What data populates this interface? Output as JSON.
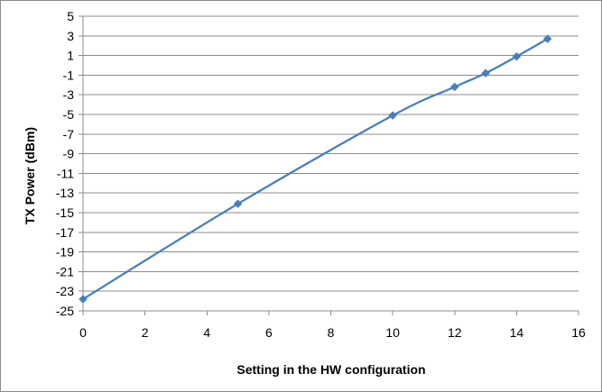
{
  "chart_data": {
    "type": "scatter",
    "title": "",
    "xlabel": "Setting in the HW configuration",
    "ylabel": "TX Power (dBm)",
    "xlim": [
      0,
      16
    ],
    "ylim": [
      -25,
      5
    ],
    "x_ticks": [
      0,
      2,
      4,
      6,
      8,
      10,
      12,
      14,
      16
    ],
    "y_ticks": [
      -25,
      -23,
      -21,
      -19,
      -17,
      -15,
      -13,
      -11,
      -9,
      -7,
      -5,
      -3,
      -1,
      1,
      3,
      5
    ],
    "grid": "horizontal",
    "legend": "none",
    "series": [
      {
        "color": "#4a7ebb",
        "marker": "diamond",
        "line": "smooth",
        "points": [
          {
            "x": 0,
            "y": -23.8
          },
          {
            "x": 5,
            "y": -14.1
          },
          {
            "x": 10,
            "y": -5.1
          },
          {
            "x": 12,
            "y": -2.2
          },
          {
            "x": 13,
            "y": -0.8
          },
          {
            "x": 14,
            "y": 0.9
          },
          {
            "x": 15,
            "y": 2.7
          }
        ]
      }
    ]
  }
}
